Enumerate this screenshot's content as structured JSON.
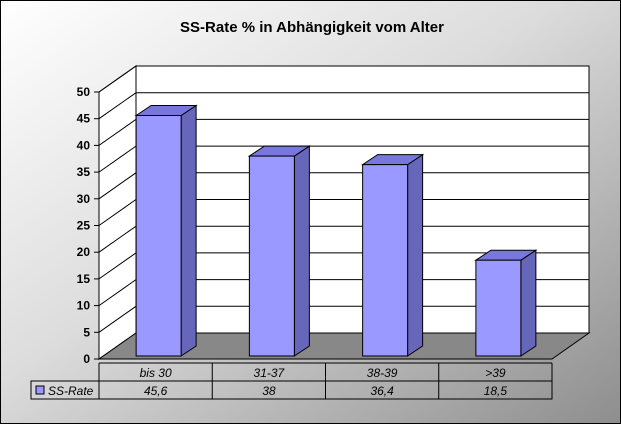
{
  "chart_data": {
    "type": "bar",
    "title": "SS-Rate % in Abhängigkeit vom Alter",
    "categories": [
      "bis 30",
      "31-37",
      "38-39",
      ">39"
    ],
    "series": [
      {
        "name": "SS-Rate",
        "values": [
          45.6,
          38,
          36.4,
          18.5
        ],
        "labels": [
          "45,6",
          "38",
          "36,4",
          "18,5"
        ]
      }
    ],
    "yticks": [
      "0",
      "5",
      "10",
      "15",
      "20",
      "25",
      "30",
      "35",
      "40",
      "45",
      "50"
    ],
    "ylim": [
      0,
      50
    ],
    "grid": true,
    "legend": "data-table",
    "style": "3d",
    "colors": {
      "bar_front": "#9999ff",
      "bar_side": "#6666bb",
      "bar_top": "#7777dd",
      "floor": "#888888",
      "wall": "#ffffff"
    }
  }
}
